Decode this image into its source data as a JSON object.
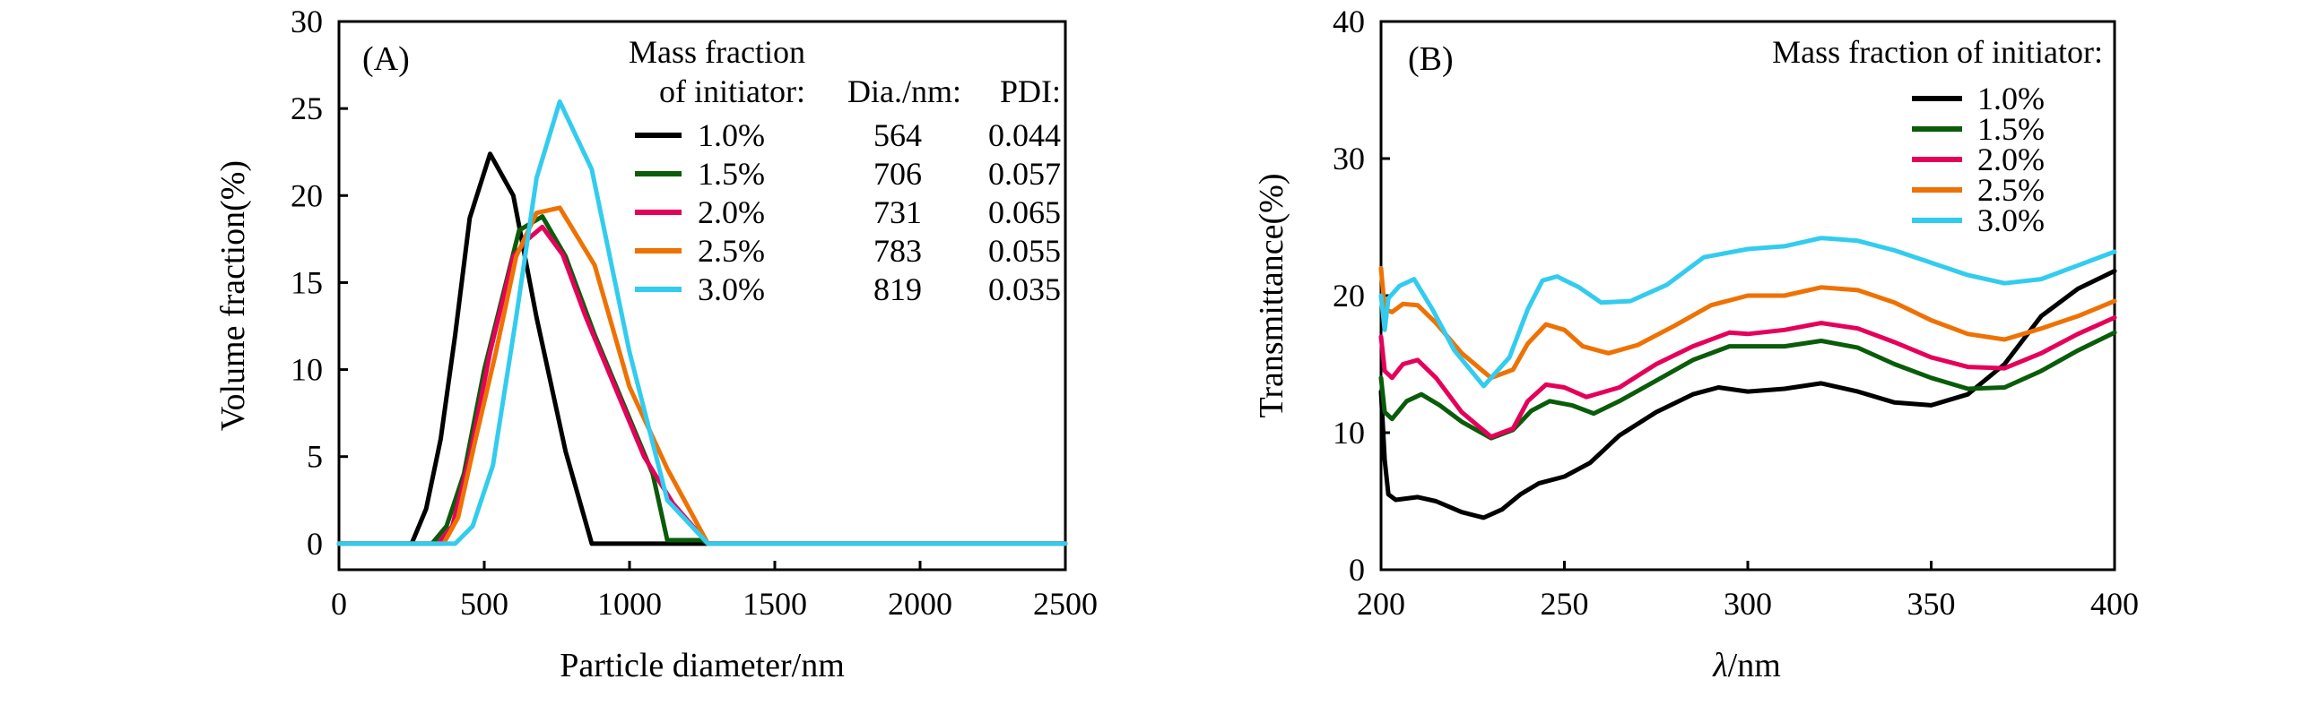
{
  "chart_data": [
    {
      "panel": "(A)",
      "type": "line",
      "xlabel": "Particle diameter/nm",
      "ylabel": "Volume fraction(%)",
      "xlim": [
        0,
        2500
      ],
      "ylim": [
        -1.5,
        30
      ],
      "xticks": [
        0,
        500,
        1000,
        1500,
        2000,
        2500
      ],
      "yticks": [
        0,
        5,
        10,
        15,
        20,
        25,
        30
      ],
      "legend": {
        "title_line1": "Mass fraction",
        "title_line2": "of initiator:",
        "dia_header": "Dia./nm:",
        "pdi_header": "PDI:"
      },
      "series": [
        {
          "name": "1.0%",
          "color": "#000000",
          "dia": "564",
          "pdi": "0.044",
          "x": [
            0,
            250,
            300,
            350,
            400,
            450,
            520,
            600,
            680,
            780,
            870,
            1000,
            2500
          ],
          "y": [
            0,
            0,
            2,
            6,
            12,
            18.7,
            22.4,
            20,
            13,
            5.3,
            0,
            0,
            0
          ]
        },
        {
          "name": "1.5%",
          "color": "#0a5c0a",
          "dia": "706",
          "pdi": "0.057",
          "x": [
            0,
            320,
            370,
            430,
            500,
            560,
            620,
            700,
            780,
            880,
            980,
            1080,
            1130,
            1250,
            1270,
            2500
          ],
          "y": [
            0,
            0,
            1,
            4,
            10,
            14,
            18,
            18.8,
            16.5,
            12,
            8,
            4,
            0.2,
            0.2,
            0,
            0
          ]
        },
        {
          "name": "2.0%",
          "color": "#e5005a",
          "dia": "731",
          "pdi": "0.065",
          "x": [
            0,
            340,
            390,
            450,
            520,
            600,
            650,
            700,
            770,
            850,
            950,
            1050,
            1150,
            1270,
            2500
          ],
          "y": [
            0,
            0,
            1,
            5,
            11,
            16.5,
            17.5,
            18.2,
            16.6,
            13,
            9,
            5,
            2.3,
            0,
            0
          ]
        },
        {
          "name": "2.5%",
          "color": "#ee7203",
          "dia": "783",
          "pdi": "0.055",
          "x": [
            0,
            360,
            410,
            470,
            540,
            610,
            680,
            760,
            880,
            1000,
            1130,
            1270,
            2500
          ],
          "y": [
            0,
            0,
            1.5,
            6,
            11,
            16.5,
            19,
            19.3,
            16,
            9,
            4.3,
            0,
            0
          ]
        },
        {
          "name": "3.0%",
          "color": "#33ccee",
          "dia": "819",
          "pdi": "0.035",
          "x": [
            0,
            400,
            460,
            530,
            610,
            680,
            760,
            870,
            1000,
            1130,
            1270,
            2500
          ],
          "y": [
            0,
            0,
            1,
            4.5,
            13,
            21,
            25.4,
            21.5,
            11,
            2.5,
            0,
            0
          ]
        }
      ]
    },
    {
      "panel": "(B)",
      "type": "line",
      "xlabel_symbol": "λ",
      "xlabel_unit": "/nm",
      "ylabel": "Transmittance(%)",
      "xlim": [
        200,
        400
      ],
      "ylim": [
        0,
        40
      ],
      "xticks": [
        200,
        250,
        300,
        350,
        400
      ],
      "yticks": [
        0,
        10,
        20,
        30,
        40
      ],
      "legend": {
        "title": "Mass fraction of initiator:"
      },
      "series": [
        {
          "name": "1.0%",
          "color": "#000000",
          "x": [
            200,
            201,
            202,
            204,
            210,
            215,
            222,
            228,
            233,
            238,
            243,
            250,
            257,
            265,
            275,
            285,
            292,
            300,
            310,
            320,
            330,
            340,
            350,
            360,
            370,
            380,
            390,
            400
          ],
          "y": [
            13,
            8,
            5.5,
            5.1,
            5.3,
            5.0,
            4.2,
            3.8,
            4.4,
            5.5,
            6.3,
            6.8,
            7.8,
            9.8,
            11.5,
            12.8,
            13.3,
            13.0,
            13.2,
            13.6,
            13.0,
            12.2,
            12.0,
            12.8,
            15.0,
            18.5,
            20.5,
            21.8
          ]
        },
        {
          "name": "1.5%",
          "color": "#0a5c0a",
          "x": [
            200,
            201,
            203,
            207,
            211,
            216,
            222,
            230,
            236,
            241,
            246,
            252,
            258,
            265,
            275,
            285,
            295,
            300,
            310,
            320,
            330,
            340,
            350,
            360,
            370,
            380,
            390,
            400
          ],
          "y": [
            14,
            11.5,
            11.0,
            12.3,
            12.8,
            12.0,
            10.8,
            9.6,
            10.2,
            11.6,
            12.3,
            12.0,
            11.4,
            12.3,
            13.8,
            15.3,
            16.3,
            16.3,
            16.3,
            16.7,
            16.2,
            15.0,
            14.0,
            13.2,
            13.3,
            14.5,
            16.0,
            17.3
          ]
        },
        {
          "name": "2.0%",
          "color": "#e5005a",
          "x": [
            200,
            201,
            203,
            206,
            210,
            215,
            222,
            230,
            236,
            240,
            245,
            250,
            256,
            265,
            275,
            285,
            295,
            300,
            310,
            320,
            330,
            340,
            350,
            360,
            370,
            380,
            390,
            400
          ],
          "y": [
            17,
            14.5,
            14.0,
            15.0,
            15.3,
            14.0,
            11.5,
            9.7,
            10.3,
            12.3,
            13.5,
            13.3,
            12.6,
            13.3,
            15.0,
            16.3,
            17.3,
            17.2,
            17.5,
            18.0,
            17.6,
            16.6,
            15.5,
            14.8,
            14.7,
            15.8,
            17.2,
            18.4
          ]
        },
        {
          "name": "2.5%",
          "color": "#ee7203",
          "x": [
            200,
            201,
            203,
            206,
            210,
            215,
            222,
            230,
            236,
            240,
            245,
            250,
            255,
            262,
            270,
            280,
            290,
            300,
            310,
            320,
            330,
            340,
            350,
            360,
            370,
            380,
            390,
            400
          ],
          "y": [
            22,
            19,
            18.8,
            19.4,
            19.3,
            18.0,
            15.8,
            14.0,
            14.6,
            16.5,
            17.9,
            17.5,
            16.3,
            15.8,
            16.4,
            17.8,
            19.3,
            20.0,
            20.0,
            20.6,
            20.4,
            19.5,
            18.2,
            17.2,
            16.8,
            17.6,
            18.5,
            19.6
          ]
        },
        {
          "name": "3.0%",
          "color": "#33ccee",
          "x": [
            200,
            201,
            202,
            205,
            209,
            214,
            220,
            228,
            235,
            240,
            244,
            248,
            254,
            260,
            268,
            278,
            288,
            300,
            310,
            320,
            330,
            340,
            350,
            360,
            370,
            380,
            390,
            400
          ],
          "y": [
            20,
            17.5,
            19.8,
            20.7,
            21.2,
            19.0,
            16.0,
            13.4,
            15.5,
            19.0,
            21.1,
            21.4,
            20.6,
            19.5,
            19.6,
            20.8,
            22.8,
            23.4,
            23.6,
            24.2,
            24.0,
            23.3,
            22.4,
            21.5,
            20.9,
            21.2,
            22.2,
            23.2
          ]
        }
      ]
    }
  ]
}
